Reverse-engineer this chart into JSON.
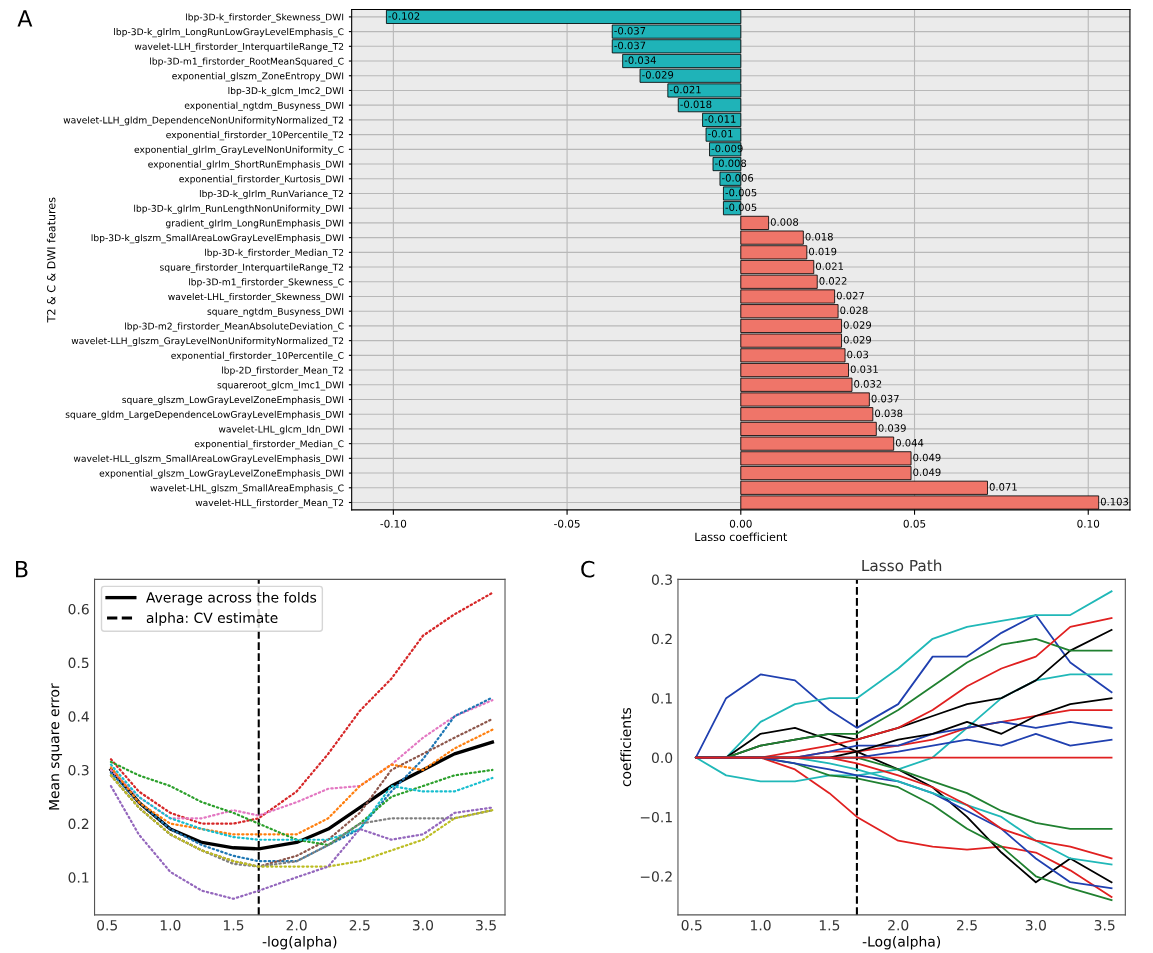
{
  "chart_data": [
    {
      "type": "bar",
      "orientation": "horizontal",
      "xlabel": "Lasso coefficient",
      "ylabel": "T2 & C & DWI features",
      "annotations": [
        "A"
      ],
      "categories": [
        "lbp-3D-k_firstorder_Skewness_DWI",
        "lbp-3D-k_glrlm_LongRunLowGrayLevelEmphasis_C",
        "wavelet-LLH_firstorder_InterquartileRange_T2",
        "lbp-3D-m1_firstorder_RootMeanSquared_C",
        "exponential_glszm_ZoneEntropy_DWI",
        "lbp-3D-k_glcm_Imc2_DWI",
        "exponential_ngtdm_Busyness_DWI",
        "wavelet-LLH_gldm_DependenceNonUniformityNormalized_T2",
        "exponential_firstorder_10Percentile_T2",
        "exponential_glrlm_GrayLevelNonUniformity_C",
        "exponential_glrlm_ShortRunEmphasis_DWI",
        "exponential_firstorder_Kurtosis_DWI",
        "lbp-3D-k_glrlm_RunVariance_T2",
        "lbp-3D-k_glrlm_RunLengthNonUniformity_DWI",
        "gradient_glrlm_LongRunEmphasis_DWI",
        "lbp-3D-k_glszm_SmallAreaLowGrayLevelEmphasis_DWI",
        "lbp-3D-k_firstorder_Median_T2",
        "square_firstorder_InterquartileRange_T2",
        "lbp-3D-m1_firstorder_Skewness_C",
        "wavelet-LHL_firstorder_Skewness_DWI",
        "square_ngtdm_Busyness_DWI",
        "lbp-3D-m2_firstorder_MeanAbsoluteDeviation_C",
        "wavelet-LLH_glszm_GrayLevelNonUniformityNormalized_T2",
        "exponential_firstorder_10Percentile_C",
        "lbp-2D_firstorder_Mean_T2",
        "squareroot_glcm_Imc1_DWI",
        "square_glszm_LowGrayLevelZoneEmphasis_DWI",
        "square_gldm_LargeDependenceLowGrayLevelEmphasis_DWI",
        "wavelet-LHL_glcm_Idn_DWI",
        "exponential_firstorder_Median_C",
        "wavelet-HLL_glszm_SmallAreaLowGrayLevelEmphasis_DWI",
        "exponential_glszm_LowGrayLevelZoneEmphasis_DWI",
        "wavelet-LHL_glszm_SmallAreaEmphasis_C",
        "wavelet-HLL_firstorder_Mean_T2"
      ],
      "values": [
        -0.102,
        -0.037,
        -0.037,
        -0.034,
        -0.029,
        -0.021,
        -0.018,
        -0.011,
        -0.01,
        -0.009,
        -0.008,
        -0.006,
        -0.005,
        -0.005,
        0.008,
        0.018,
        0.019,
        0.021,
        0.022,
        0.027,
        0.028,
        0.029,
        0.029,
        0.03,
        0.031,
        0.032,
        0.037,
        0.038,
        0.039,
        0.044,
        0.049,
        0.049,
        0.071,
        0.103
      ],
      "colors": [
        "#1fb3b8",
        "#1fb3b8",
        "#1fb3b8",
        "#1fb3b8",
        "#1fb3b8",
        "#1fb3b8",
        "#1fb3b8",
        "#1fb3b8",
        "#1fb3b8",
        "#1fb3b8",
        "#1fb3b8",
        "#1fb3b8",
        "#1fb3b8",
        "#1fb3b8",
        "#ef7569",
        "#ef7569",
        "#ef7569",
        "#ef7569",
        "#ef7569",
        "#ef7569",
        "#ef7569",
        "#ef7569",
        "#ef7569",
        "#ef7569",
        "#ef7569",
        "#ef7569",
        "#ef7569",
        "#ef7569",
        "#ef7569",
        "#ef7569",
        "#ef7569",
        "#ef7569",
        "#ef7569",
        "#ef7569"
      ],
      "data_labels": true,
      "xlim": [
        -0.112,
        0.112
      ],
      "xticks": [
        {
          "value": -0.1,
          "label": "-0.10"
        },
        {
          "value": -0.05,
          "label": "-0.05"
        },
        {
          "value": 0,
          "label": "0.00"
        },
        {
          "value": 0.05,
          "label": "0.05"
        },
        {
          "value": 0.1,
          "label": "0.10"
        }
      ],
      "grid": true
    },
    {
      "type": "line",
      "xlabel": "-log(alpha)",
      "ylabel": "Mean square error",
      "annotations": [
        "B"
      ],
      "legend": "top left",
      "x": [
        0.53,
        0.75,
        1.0,
        1.25,
        1.5,
        1.7,
        2.0,
        2.25,
        2.5,
        2.75,
        3.0,
        3.25,
        3.55
      ],
      "xlim": [
        0.4,
        3.65
      ],
      "ylim": [
        0.03,
        0.655
      ],
      "xticks": [
        0.5,
        {
          "value": 1,
          "label": "1.0"
        },
        1.5,
        {
          "value": 2,
          "label": "2.0"
        },
        2.5,
        {
          "value": 3,
          "label": "3.0"
        },
        3.5
      ],
      "yticks": [
        0.1,
        0.2,
        0.3,
        0.4,
        0.5,
        0.6
      ],
      "ref_lines": [
        {
          "axis": "x",
          "value": 1.7,
          "label": "alpha: CV estimate",
          "line_style": "dashed",
          "color": "#000000"
        }
      ],
      "series": [
        {
          "color": "#d62728",
          "line_style": "dotted",
          "values": [
            0.32,
            0.26,
            0.22,
            0.2,
            0.2,
            0.21,
            0.26,
            0.33,
            0.41,
            0.47,
            0.55,
            0.59,
            0.63
          ]
        },
        {
          "color": "#e377c2",
          "line_style": "dotted",
          "values": [
            0.3,
            0.25,
            0.21,
            0.21,
            0.225,
            0.215,
            0.24,
            0.265,
            0.27,
            0.31,
            0.36,
            0.4,
            0.43
          ]
        },
        {
          "color": "#1f77b4",
          "line_style": "dotted",
          "values": [
            0.295,
            0.24,
            0.19,
            0.16,
            0.14,
            0.13,
            0.13,
            0.16,
            0.19,
            0.26,
            0.32,
            0.4,
            0.435
          ]
        },
        {
          "color": "#8c564b",
          "line_style": "dotted",
          "values": [
            0.29,
            0.23,
            0.18,
            0.15,
            0.13,
            0.12,
            0.14,
            0.17,
            0.22,
            0.3,
            0.33,
            0.36,
            0.395
          ]
        },
        {
          "color": "#ff7f0e",
          "line_style": "dotted",
          "values": [
            0.305,
            0.24,
            0.2,
            0.19,
            0.18,
            0.18,
            0.18,
            0.21,
            0.27,
            0.31,
            0.3,
            0.34,
            0.375
          ]
        },
        {
          "color": "#2ca02c",
          "line_style": "dotted",
          "values": [
            0.315,
            0.29,
            0.27,
            0.24,
            0.22,
            0.2,
            0.17,
            0.16,
            0.2,
            0.25,
            0.27,
            0.29,
            0.3
          ]
        },
        {
          "color": "#17becf",
          "line_style": "dotted",
          "values": [
            0.31,
            0.25,
            0.21,
            0.19,
            0.175,
            0.17,
            0.17,
            0.17,
            0.19,
            0.27,
            0.26,
            0.26,
            0.285
          ]
        },
        {
          "color": "#7f7f7f",
          "line_style": "dotted",
          "values": [
            0.29,
            0.23,
            0.18,
            0.15,
            0.125,
            0.12,
            0.13,
            0.16,
            0.2,
            0.21,
            0.21,
            0.21,
            0.225
          ]
        },
        {
          "color": "#bcbd22",
          "line_style": "dotted",
          "values": [
            0.29,
            0.23,
            0.18,
            0.15,
            0.13,
            0.12,
            0.12,
            0.12,
            0.13,
            0.15,
            0.17,
            0.21,
            0.225
          ]
        },
        {
          "color": "#9467bd",
          "line_style": "dotted",
          "values": [
            0.27,
            0.18,
            0.11,
            0.075,
            0.06,
            0.075,
            0.1,
            0.12,
            0.19,
            0.17,
            0.18,
            0.22,
            0.23
          ]
        },
        {
          "name": "Average across the folds",
          "color": "#000000",
          "line_style": "solid",
          "values": [
            0.3,
            0.24,
            0.19,
            0.165,
            0.155,
            0.153,
            0.165,
            0.19,
            0.23,
            0.27,
            0.3,
            0.33,
            0.352
          ]
        }
      ]
    },
    {
      "type": "line",
      "title": "Lasso Path",
      "xlabel": "-Log(alpha)",
      "ylabel": "coefficients",
      "annotations": [
        "C"
      ],
      "x": [
        0.53,
        0.75,
        1.0,
        1.25,
        1.5,
        1.7,
        2.0,
        2.25,
        2.5,
        2.75,
        3.0,
        3.25,
        3.55
      ],
      "xlim": [
        0.4,
        3.65
      ],
      "ylim": [
        -0.265,
        0.3
      ],
      "xticks": [
        0.5,
        {
          "value": 1,
          "label": "1.0"
        },
        1.5,
        {
          "value": 2,
          "label": "2.0"
        },
        2.5,
        {
          "value": 3,
          "label": "3.0"
        },
        3.5
      ],
      "yticks": [
        {
          "value": -0.2,
          "label": "−0.2"
        },
        {
          "value": -0.1,
          "label": "−0.1"
        },
        {
          "value": 0,
          "label": "0.0"
        },
        0.1,
        0.2,
        0.3
      ],
      "ref_lines": [
        {
          "axis": "x",
          "value": 1.7,
          "line_style": "dashed",
          "color": "#000000"
        }
      ],
      "series": [
        {
          "color": "#2040b0",
          "values": [
            0,
            0.1,
            0.14,
            0.13,
            0.08,
            0.05,
            0.09,
            0.17,
            0.17,
            0.21,
            0.24,
            0.16,
            0.11
          ]
        },
        {
          "color": "#20b8b8",
          "values": [
            0,
            0,
            0.06,
            0.09,
            0.1,
            0.1,
            0.15,
            0.2,
            0.22,
            0.23,
            0.24,
            0.24,
            0.28
          ]
        },
        {
          "color": "#e02020",
          "values": [
            0,
            0,
            0,
            -0.02,
            -0.06,
            -0.1,
            -0.14,
            -0.15,
            -0.155,
            -0.15,
            -0.16,
            -0.19,
            -0.235
          ]
        },
        {
          "color": "#20b8b8",
          "values": [
            0,
            -0.03,
            -0.04,
            -0.04,
            -0.03,
            -0.03,
            -0.02,
            0.0,
            0.05,
            0.1,
            0.13,
            0.14,
            0.14
          ]
        },
        {
          "color": "#000000",
          "values": [
            0,
            0,
            0.04,
            0.05,
            0.03,
            0.01,
            -0.02,
            -0.05,
            -0.1,
            -0.16,
            -0.21,
            -0.17,
            -0.21
          ]
        },
        {
          "color": "#000000",
          "values": [
            0,
            0,
            0.02,
            0.03,
            0.04,
            0.03,
            0.05,
            0.07,
            0.09,
            0.1,
            0.13,
            0.18,
            0.215
          ]
        },
        {
          "color": "#208030",
          "values": [
            0,
            0,
            0.02,
            0.03,
            0.04,
            0.04,
            0.08,
            0.12,
            0.16,
            0.19,
            0.2,
            0.18,
            0.18
          ]
        },
        {
          "color": "#208030",
          "values": [
            0,
            0,
            0,
            -0.01,
            -0.03,
            -0.035,
            -0.05,
            -0.08,
            -0.12,
            -0.15,
            -0.2,
            -0.22,
            -0.24
          ]
        },
        {
          "color": "#2040b0",
          "values": [
            0,
            0,
            0,
            -0.01,
            -0.02,
            -0.03,
            -0.04,
            -0.06,
            -0.09,
            -0.12,
            -0.17,
            -0.21,
            -0.22
          ]
        },
        {
          "color": "#e02020",
          "values": [
            0,
            0,
            0,
            0.01,
            0.02,
            0.03,
            0.05,
            0.08,
            0.12,
            0.15,
            0.17,
            0.22,
            0.235
          ]
        },
        {
          "color": "#e02020",
          "values": [
            0,
            0,
            0,
            0,
            0.01,
            0.01,
            0.02,
            0.03,
            0.05,
            0.06,
            0.07,
            0.08,
            0.08
          ]
        },
        {
          "color": "#2040b0",
          "values": [
            0,
            0,
            0,
            0,
            0.01,
            0.02,
            0.02,
            0.04,
            0.05,
            0.06,
            0.05,
            0.06,
            0.05
          ]
        },
        {
          "color": "#20b8b8",
          "values": [
            0,
            0,
            0,
            0,
            -0.01,
            -0.02,
            -0.04,
            -0.06,
            -0.08,
            -0.1,
            -0.14,
            -0.17,
            -0.18
          ]
        },
        {
          "color": "#208030",
          "values": [
            0,
            0,
            0,
            0,
            0,
            0,
            -0.02,
            -0.04,
            -0.06,
            -0.09,
            -0.11,
            -0.12,
            -0.12
          ]
        },
        {
          "color": "#000000",
          "values": [
            0,
            0,
            0,
            0,
            0,
            0.01,
            0.03,
            0.04,
            0.06,
            0.04,
            0.07,
            0.09,
            0.1
          ]
        },
        {
          "color": "#e02020",
          "values": [
            0,
            0,
            0,
            0,
            0,
            -0.01,
            -0.03,
            -0.05,
            -0.08,
            -0.12,
            -0.14,
            -0.15,
            -0.17
          ]
        },
        {
          "color": "#2040b0",
          "values": [
            0,
            0,
            0,
            0,
            0,
            0,
            0.01,
            0.02,
            0.03,
            0.02,
            0.04,
            0.02,
            0.03
          ]
        },
        {
          "color": "#e02020",
          "values": [
            0,
            0,
            0,
            0,
            0,
            0,
            0,
            0,
            0,
            0,
            0,
            0,
            0
          ]
        }
      ]
    }
  ]
}
